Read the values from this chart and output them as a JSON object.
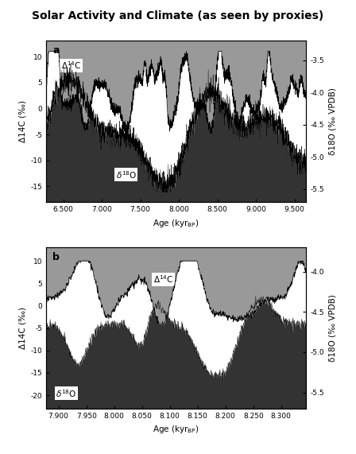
{
  "title": "Solar Activity and Climate (as seen by proxies)",
  "title_fontsize": 10,
  "panel_a": {
    "label": "a",
    "x_min": 6.28,
    "x_max": 9.65,
    "x_ticks": [
      6.5,
      7.0,
      7.5,
      8.0,
      8.5,
      9.0,
      9.5
    ],
    "x_ticklabels": [
      "6.500",
      "7.000",
      "7.500",
      "8.000",
      "8.500",
      "9.000",
      "9.500"
    ],
    "y14c_min": -18,
    "y14c_max": 13,
    "y14c_ticks": [
      -15,
      -10,
      -5,
      0,
      5,
      10
    ],
    "y18o_min": -5.7,
    "y18o_max": -3.2,
    "y18o_ticks": [
      -5.5,
      -5.0,
      -4.5,
      -4.0,
      -3.5
    ],
    "ylabel_left": "Δ14C (‰)",
    "ylabel_right": "δ18O (‰ VPDB)"
  },
  "panel_b": {
    "label": "b",
    "x_min": 7.878,
    "x_max": 8.345,
    "x_ticks": [
      7.9,
      7.95,
      8.0,
      8.05,
      8.1,
      8.15,
      8.2,
      8.25,
      8.3
    ],
    "x_ticklabels": [
      "7.900",
      "7.950",
      "8.000",
      "8.050",
      "8.100",
      "8.150",
      "8.200",
      "8.250",
      "8.300"
    ],
    "y14c_min": -23,
    "y14c_max": 13,
    "y14c_ticks": [
      -20,
      -15,
      -10,
      -5,
      0,
      5,
      10
    ],
    "y18o_min": -5.7,
    "y18o_max": -3.7,
    "y18o_ticks": [
      -5.5,
      -5.0,
      -4.5,
      -4.0
    ],
    "ylabel_left": "Δ14C (‰)",
    "ylabel_right": "δ18O (‰ VPDB)"
  },
  "xlabel": "Age (kyr BP)",
  "gray_color": "#999999",
  "dark_color": "#333333",
  "white_color": "#ffffff",
  "bg_color": "#ffffff"
}
